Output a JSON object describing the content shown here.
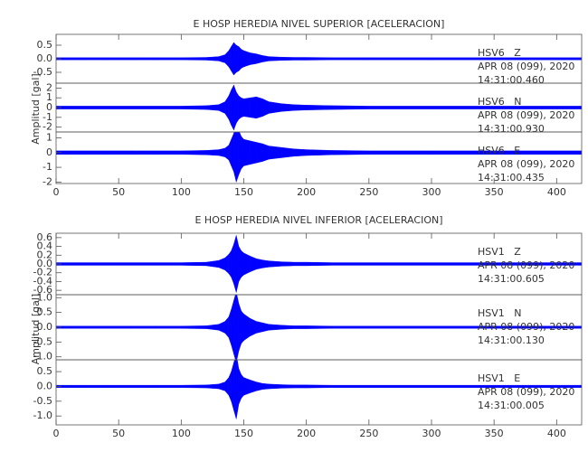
{
  "chart_data": [
    {
      "type": "line",
      "title": "E HOSP HEREDIA NIVEL SUPERIOR [ACELERACION]",
      "y_label": "Amplitud [gal]",
      "xlim": [
        0,
        420
      ],
      "xticks": [
        0,
        50,
        100,
        150,
        200,
        250,
        300,
        350,
        400
      ],
      "x": [
        0,
        20,
        40,
        60,
        80,
        100,
        120,
        130,
        135,
        138,
        140,
        142,
        144,
        146,
        148,
        150,
        155,
        160,
        165,
        170,
        180,
        190,
        200,
        220,
        250,
        300,
        350,
        400,
        420
      ],
      "series": [
        {
          "name": "HSV6   Z",
          "date": "APR 08 (099), 2020",
          "time": "14:31:00.460",
          "color": "#0000ff",
          "ylim": [
            -0.9,
            0.9
          ],
          "yticks": [
            -0.5,
            {
              "value": 0,
              "label": "0.0"
            },
            0.5
          ],
          "values": [
            0.04,
            0.04,
            0.04,
            0.04,
            0.04,
            0.04,
            0.05,
            0.08,
            0.15,
            0.3,
            0.45,
            0.6,
            0.5,
            0.45,
            0.35,
            0.3,
            0.22,
            0.18,
            0.12,
            0.08,
            0.06,
            0.05,
            0.05,
            0.04,
            0.04,
            0.04,
            0.04,
            0.04,
            0.04
          ]
        },
        {
          "name": "HSV6   N",
          "date": "APR 08 (099), 2020",
          "time": "14:31:00.930",
          "color": "#0000ff",
          "ylim": [
            -2.5,
            2.5
          ],
          "yticks": [
            -2,
            -1,
            0,
            1,
            2
          ],
          "values": [
            0.15,
            0.15,
            0.15,
            0.15,
            0.15,
            0.15,
            0.2,
            0.3,
            0.6,
            1.2,
            1.8,
            2.3,
            1.6,
            1.2,
            1.0,
            0.9,
            1.0,
            1.1,
            0.9,
            0.6,
            0.4,
            0.3,
            0.25,
            0.2,
            0.15,
            0.15,
            0.15,
            0.15,
            0.15
          ]
        },
        {
          "name": "HSV6   E",
          "date": "APR 08 (099), 2020",
          "time": "14:31:00.435",
          "color": "#0000ff",
          "ylim": [
            -2.1,
            1.4
          ],
          "yticks": [
            -2,
            -1,
            0,
            1
          ],
          "values": [
            0.12,
            0.12,
            0.12,
            0.12,
            0.12,
            0.12,
            0.15,
            0.2,
            0.3,
            0.5,
            0.9,
            1.3,
            2.0,
            1.5,
            1.1,
            0.9,
            0.8,
            0.7,
            0.6,
            0.45,
            0.35,
            0.25,
            0.2,
            0.15,
            0.12,
            0.12,
            0.12,
            0.12,
            0.12
          ]
        }
      ]
    },
    {
      "type": "line",
      "title": "E HOSP HEREDIA NIVEL INFERIOR [ACELERACION]",
      "y_label": "Amplitud [gal]",
      "xlim": [
        0,
        420
      ],
      "xticks": [
        0,
        50,
        100,
        150,
        200,
        250,
        300,
        350,
        400
      ],
      "x": [
        0,
        20,
        40,
        60,
        80,
        100,
        120,
        130,
        135,
        138,
        140,
        142,
        144,
        146,
        148,
        150,
        155,
        160,
        165,
        170,
        180,
        190,
        200,
        220,
        250,
        300,
        350,
        400,
        420
      ],
      "series": [
        {
          "name": "HSV1   Z",
          "date": "APR 08 (099), 2020",
          "time": "14:31:00.605",
          "color": "#0000ff",
          "ylim": [
            -0.7,
            0.7
          ],
          "yticks": [
            -0.6,
            -0.4,
            -0.2,
            {
              "value": 0,
              "label": "0.0"
            },
            0.2,
            0.4,
            0.6
          ],
          "values": [
            0.03,
            0.03,
            0.03,
            0.03,
            0.03,
            0.03,
            0.04,
            0.08,
            0.14,
            0.22,
            0.3,
            0.45,
            0.65,
            0.4,
            0.3,
            0.25,
            0.18,
            0.12,
            0.09,
            0.07,
            0.05,
            0.04,
            0.04,
            0.03,
            0.03,
            0.03,
            0.03,
            0.03,
            0.03
          ]
        },
        {
          "name": "HSV1   N",
          "date": "APR 08 (099), 2020",
          "time": "14:31:00.130",
          "color": "#0000ff",
          "ylim": [
            -1.1,
            1.1
          ],
          "yticks": [
            {
              "value": -1,
              "label": "-1.0"
            },
            -0.5,
            {
              "value": 0,
              "label": "0.0"
            },
            0.5,
            {
              "value": 1,
              "label": "1.0"
            }
          ],
          "values": [
            0.04,
            0.04,
            0.04,
            0.04,
            0.04,
            0.04,
            0.05,
            0.1,
            0.2,
            0.35,
            0.6,
            0.9,
            1.2,
            0.8,
            0.55,
            0.45,
            0.3,
            0.2,
            0.15,
            0.1,
            0.07,
            0.05,
            0.05,
            0.04,
            0.04,
            0.04,
            0.04,
            0.04,
            0.04
          ]
        },
        {
          "name": "HSV1   E",
          "date": "APR 08 (099), 2020",
          "time": "14:31:00.005",
          "color": "#0000ff",
          "ylim": [
            -1.3,
            0.9
          ],
          "yticks": [
            {
              "value": -1,
              "label": "-1.0"
            },
            -0.5,
            {
              "value": 0,
              "label": "0.0"
            },
            0.5
          ],
          "values": [
            0.04,
            0.04,
            0.04,
            0.04,
            0.04,
            0.04,
            0.05,
            0.08,
            0.15,
            0.3,
            0.5,
            0.8,
            1.1,
            0.6,
            0.4,
            0.3,
            0.22,
            0.15,
            0.1,
            0.08,
            0.06,
            0.05,
            0.05,
            0.04,
            0.04,
            0.04,
            0.04,
            0.04,
            0.04
          ]
        }
      ]
    }
  ]
}
